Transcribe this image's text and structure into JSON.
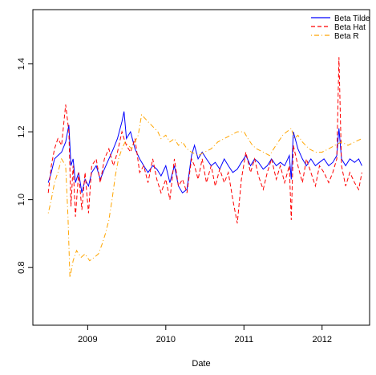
{
  "chart_data": {
    "type": "line",
    "title": "",
    "xlabel": "Date",
    "ylabel": "",
    "xlim": [
      "2008-04-20",
      "2012-08-10"
    ],
    "ylim": [
      0.63,
      1.56
    ],
    "xticks": [
      {
        "date": "2009-01-01",
        "label": "2009"
      },
      {
        "date": "2010-01-01",
        "label": "2010"
      },
      {
        "date": "2011-01-01",
        "label": "2011"
      },
      {
        "date": "2012-01-01",
        "label": "2012"
      }
    ],
    "yticks": [
      {
        "value": 0.8,
        "label": "0.8"
      },
      {
        "value": 1.0,
        "label": "1.0"
      },
      {
        "value": 1.2,
        "label": "1.2"
      },
      {
        "value": 1.4,
        "label": "1.4"
      }
    ],
    "grid": false,
    "legend_position": "top-right",
    "series": [
      {
        "name": "Beta Tilde",
        "color": "#0000ff",
        "line": "solid",
        "points": [
          [
            "2008-07-01",
            1.05
          ],
          [
            "2008-07-15",
            1.08
          ],
          [
            "2008-07-30",
            1.12
          ],
          [
            "2008-08-15",
            1.13
          ],
          [
            "2008-09-01",
            1.14
          ],
          [
            "2008-09-20",
            1.17
          ],
          [
            "2008-10-05",
            1.22
          ],
          [
            "2008-10-15",
            1.1
          ],
          [
            "2008-10-25",
            1.12
          ],
          [
            "2008-11-05",
            1.05
          ],
          [
            "2008-11-20",
            1.08
          ],
          [
            "2008-12-05",
            1.02
          ],
          [
            "2008-12-20",
            1.06
          ],
          [
            "2009-01-05",
            1.04
          ],
          [
            "2009-01-20",
            1.08
          ],
          [
            "2009-02-10",
            1.1
          ],
          [
            "2009-03-01",
            1.06
          ],
          [
            "2009-03-20",
            1.09
          ],
          [
            "2009-04-10",
            1.12
          ],
          [
            "2009-05-01",
            1.15
          ],
          [
            "2009-05-20",
            1.18
          ],
          [
            "2009-06-10",
            1.23
          ],
          [
            "2009-06-20",
            1.26
          ],
          [
            "2009-07-01",
            1.18
          ],
          [
            "2009-07-20",
            1.2
          ],
          [
            "2009-08-10",
            1.15
          ],
          [
            "2009-09-01",
            1.12
          ],
          [
            "2009-09-20",
            1.1
          ],
          [
            "2009-10-10",
            1.08
          ],
          [
            "2009-11-01",
            1.1
          ],
          [
            "2009-11-20",
            1.09
          ],
          [
            "2009-12-10",
            1.07
          ],
          [
            "2010-01-01",
            1.1
          ],
          [
            "2010-01-20",
            1.05
          ],
          [
            "2010-02-10",
            1.1
          ],
          [
            "2010-03-01",
            1.04
          ],
          [
            "2010-03-20",
            1.02
          ],
          [
            "2010-04-10",
            1.03
          ],
          [
            "2010-05-01",
            1.13
          ],
          [
            "2010-05-15",
            1.16
          ],
          [
            "2010-06-01",
            1.12
          ],
          [
            "2010-06-20",
            1.14
          ],
          [
            "2010-07-10",
            1.12
          ],
          [
            "2010-08-01",
            1.1
          ],
          [
            "2010-08-20",
            1.11
          ],
          [
            "2010-09-10",
            1.09
          ],
          [
            "2010-10-01",
            1.12
          ],
          [
            "2010-10-20",
            1.1
          ],
          [
            "2010-11-10",
            1.08
          ],
          [
            "2010-12-01",
            1.09
          ],
          [
            "2010-12-20",
            1.11
          ],
          [
            "2011-01-10",
            1.13
          ],
          [
            "2011-02-01",
            1.1
          ],
          [
            "2011-02-20",
            1.12
          ],
          [
            "2011-03-10",
            1.11
          ],
          [
            "2011-04-01",
            1.09
          ],
          [
            "2011-04-20",
            1.1
          ],
          [
            "2011-05-10",
            1.12
          ],
          [
            "2011-06-01",
            1.1
          ],
          [
            "2011-06-20",
            1.11
          ],
          [
            "2011-07-10",
            1.1
          ],
          [
            "2011-08-01",
            1.13
          ],
          [
            "2011-08-10",
            1.06
          ],
          [
            "2011-08-20",
            1.2
          ],
          [
            "2011-09-10",
            1.15
          ],
          [
            "2011-10-01",
            1.12
          ],
          [
            "2011-10-20",
            1.1
          ],
          [
            "2011-11-10",
            1.12
          ],
          [
            "2011-12-01",
            1.1
          ],
          [
            "2011-12-20",
            1.11
          ],
          [
            "2012-01-10",
            1.12
          ],
          [
            "2012-02-01",
            1.1
          ],
          [
            "2012-02-20",
            1.11
          ],
          [
            "2012-03-10",
            1.13
          ],
          [
            "2012-03-20",
            1.21
          ],
          [
            "2012-04-01",
            1.12
          ],
          [
            "2012-04-20",
            1.1
          ],
          [
            "2012-05-10",
            1.12
          ],
          [
            "2012-06-01",
            1.11
          ],
          [
            "2012-06-20",
            1.12
          ],
          [
            "2012-07-05",
            1.1
          ]
        ]
      },
      {
        "name": "Beta Hat",
        "color": "#ff0000",
        "line": "dashed",
        "points": [
          [
            "2008-07-01",
            1.02
          ],
          [
            "2008-07-15",
            1.1
          ],
          [
            "2008-07-30",
            1.15
          ],
          [
            "2008-08-15",
            1.18
          ],
          [
            "2008-09-01",
            1.16
          ],
          [
            "2008-09-20",
            1.28
          ],
          [
            "2008-10-05",
            1.2
          ],
          [
            "2008-10-15",
            0.98
          ],
          [
            "2008-10-25",
            1.1
          ],
          [
            "2008-11-05",
            0.95
          ],
          [
            "2008-11-20",
            1.08
          ],
          [
            "2008-12-05",
            0.97
          ],
          [
            "2008-12-20",
            1.08
          ],
          [
            "2009-01-05",
            0.96
          ],
          [
            "2009-01-20",
            1.1
          ],
          [
            "2009-02-10",
            1.12
          ],
          [
            "2009-03-01",
            1.05
          ],
          [
            "2009-03-20",
            1.12
          ],
          [
            "2009-04-10",
            1.15
          ],
          [
            "2009-05-01",
            1.1
          ],
          [
            "2009-05-20",
            1.14
          ],
          [
            "2009-06-10",
            1.2
          ],
          [
            "2009-06-20",
            1.18
          ],
          [
            "2009-07-01",
            1.16
          ],
          [
            "2009-07-20",
            1.14
          ],
          [
            "2009-08-10",
            1.18
          ],
          [
            "2009-09-01",
            1.08
          ],
          [
            "2009-09-20",
            1.1
          ],
          [
            "2009-10-10",
            1.05
          ],
          [
            "2009-11-01",
            1.12
          ],
          [
            "2009-11-20",
            1.06
          ],
          [
            "2009-12-10",
            1.02
          ],
          [
            "2010-01-01",
            1.06
          ],
          [
            "2010-01-20",
            1.0
          ],
          [
            "2010-02-10",
            1.12
          ],
          [
            "2010-03-01",
            1.04
          ],
          [
            "2010-03-20",
            1.06
          ],
          [
            "2010-04-10",
            1.02
          ],
          [
            "2010-05-01",
            1.12
          ],
          [
            "2010-05-15",
            1.1
          ],
          [
            "2010-06-01",
            1.06
          ],
          [
            "2010-06-20",
            1.12
          ],
          [
            "2010-07-10",
            1.05
          ],
          [
            "2010-08-01",
            1.1
          ],
          [
            "2010-08-20",
            1.04
          ],
          [
            "2010-09-10",
            1.09
          ],
          [
            "2010-10-01",
            1.05
          ],
          [
            "2010-10-20",
            1.08
          ],
          [
            "2010-11-10",
            1.0
          ],
          [
            "2010-12-01",
            0.93
          ],
          [
            "2010-12-20",
            1.06
          ],
          [
            "2011-01-10",
            1.14
          ],
          [
            "2011-02-01",
            1.08
          ],
          [
            "2011-02-20",
            1.12
          ],
          [
            "2011-03-10",
            1.07
          ],
          [
            "2011-04-01",
            1.03
          ],
          [
            "2011-04-20",
            1.08
          ],
          [
            "2011-05-10",
            1.12
          ],
          [
            "2011-06-01",
            1.06
          ],
          [
            "2011-06-20",
            1.1
          ],
          [
            "2011-07-10",
            1.05
          ],
          [
            "2011-08-01",
            1.1
          ],
          [
            "2011-08-10",
            0.94
          ],
          [
            "2011-08-20",
            1.16
          ],
          [
            "2011-09-10",
            1.1
          ],
          [
            "2011-10-01",
            1.05
          ],
          [
            "2011-10-20",
            1.12
          ],
          [
            "2011-11-10",
            1.08
          ],
          [
            "2011-12-01",
            1.04
          ],
          [
            "2011-12-20",
            1.1
          ],
          [
            "2012-01-10",
            1.08
          ],
          [
            "2012-02-01",
            1.05
          ],
          [
            "2012-02-20",
            1.08
          ],
          [
            "2012-03-10",
            1.12
          ],
          [
            "2012-03-20",
            1.42
          ],
          [
            "2012-04-01",
            1.1
          ],
          [
            "2012-04-20",
            1.04
          ],
          [
            "2012-05-10",
            1.08
          ],
          [
            "2012-06-01",
            1.05
          ],
          [
            "2012-06-20",
            1.03
          ],
          [
            "2012-07-05",
            1.08
          ]
        ]
      },
      {
        "name": "Beta R",
        "color": "#ffa500",
        "line": "dotdash",
        "points": [
          [
            "2008-07-01",
            0.96
          ],
          [
            "2008-07-15",
            1.0
          ],
          [
            "2008-07-30",
            1.05
          ],
          [
            "2008-08-15",
            1.08
          ],
          [
            "2008-09-01",
            1.12
          ],
          [
            "2008-09-20",
            1.1
          ],
          [
            "2008-10-01",
            0.95
          ],
          [
            "2008-10-10",
            0.77
          ],
          [
            "2008-10-25",
            0.82
          ],
          [
            "2008-11-10",
            0.85
          ],
          [
            "2008-12-01",
            0.83
          ],
          [
            "2008-12-20",
            0.84
          ],
          [
            "2009-01-10",
            0.82
          ],
          [
            "2009-02-01",
            0.83
          ],
          [
            "2009-02-20",
            0.84
          ],
          [
            "2009-03-10",
            0.87
          ],
          [
            "2009-03-25",
            0.9
          ],
          [
            "2009-04-10",
            0.94
          ],
          [
            "2009-04-25",
            1.0
          ],
          [
            "2009-05-10",
            1.07
          ],
          [
            "2009-05-25",
            1.12
          ],
          [
            "2009-06-10",
            1.15
          ],
          [
            "2009-06-25",
            1.17
          ],
          [
            "2009-07-10",
            1.16
          ],
          [
            "2009-07-25",
            1.15
          ],
          [
            "2009-08-10",
            1.17
          ],
          [
            "2009-08-25",
            1.19
          ],
          [
            "2009-09-10",
            1.25
          ],
          [
            "2009-09-25",
            1.24
          ],
          [
            "2009-10-10",
            1.23
          ],
          [
            "2009-10-25",
            1.22
          ],
          [
            "2009-11-10",
            1.21
          ],
          [
            "2009-11-25",
            1.2
          ],
          [
            "2009-12-10",
            1.18
          ],
          [
            "2010-01-01",
            1.19
          ],
          [
            "2010-01-20",
            1.17
          ],
          [
            "2010-02-10",
            1.18
          ],
          [
            "2010-03-01",
            1.16
          ],
          [
            "2010-03-20",
            1.17
          ],
          [
            "2010-04-10",
            1.15
          ],
          [
            "2010-05-01",
            1.14
          ],
          [
            "2010-06-01",
            1.13
          ],
          [
            "2010-07-01",
            1.14
          ],
          [
            "2010-08-01",
            1.15
          ],
          [
            "2010-09-01",
            1.17
          ],
          [
            "2010-10-01",
            1.18
          ],
          [
            "2010-11-01",
            1.19
          ],
          [
            "2010-12-01",
            1.2
          ],
          [
            "2011-01-01",
            1.2
          ],
          [
            "2011-01-20",
            1.18
          ],
          [
            "2011-02-10",
            1.16
          ],
          [
            "2011-03-01",
            1.15
          ],
          [
            "2011-04-01",
            1.14
          ],
          [
            "2011-05-01",
            1.13
          ],
          [
            "2011-05-20",
            1.15
          ],
          [
            "2011-06-10",
            1.17
          ],
          [
            "2011-07-01",
            1.19
          ],
          [
            "2011-07-20",
            1.2
          ],
          [
            "2011-08-10",
            1.21
          ],
          [
            "2011-08-25",
            1.18
          ],
          [
            "2011-09-10",
            1.19
          ],
          [
            "2011-10-01",
            1.17
          ],
          [
            "2011-11-01",
            1.15
          ],
          [
            "2011-12-01",
            1.14
          ],
          [
            "2012-01-01",
            1.14
          ],
          [
            "2012-02-01",
            1.15
          ],
          [
            "2012-03-01",
            1.16
          ],
          [
            "2012-04-01",
            1.17
          ],
          [
            "2012-05-01",
            1.16
          ],
          [
            "2012-06-01",
            1.17
          ],
          [
            "2012-07-05",
            1.18
          ]
        ]
      }
    ]
  }
}
